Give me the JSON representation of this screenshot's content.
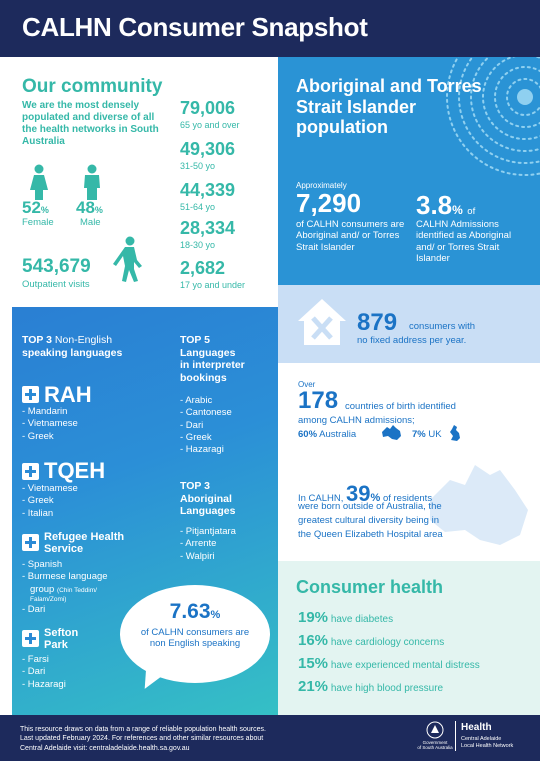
{
  "header": {
    "title": "CALHN Consumer Snapshot"
  },
  "community": {
    "title": "Our community",
    "description": "We are the most densely populated and diverse of all the health networks in South Australia",
    "female_pct": "52",
    "female_label": "Female",
    "male_pct": "48",
    "male_label": "Male",
    "pct_sign": "%",
    "outpatient_num": "543,679",
    "outpatient_label": "Outpatient visits",
    "ages": [
      {
        "num": "79,006",
        "label": "65 yo and over"
      },
      {
        "num": "49,306",
        "label": "31-50 yo"
      },
      {
        "num": "44,339",
        "label": "51-64 yo"
      },
      {
        "num": "28,334",
        "label": "18-30 yo"
      },
      {
        "num": "2,682",
        "label": "17 yo and under"
      }
    ]
  },
  "aboriginal": {
    "title": "Aboriginal and Torres Strait Islander population",
    "approx": "Approximately",
    "count": "7,290",
    "count_text": "of CALHN consumers are Aboriginal and/ or Torres Strait Islander",
    "pct": "3.8",
    "pct_sign": "%",
    "pct_of": "of",
    "pct_text": "CALHN Admissions identified as Aboriginal and/ or Torres Strait Islander"
  },
  "no_fixed_address": {
    "num": "879",
    "text1": "consumers with",
    "text2": "no fixed address per year."
  },
  "countries": {
    "over": "Over",
    "num": "178",
    "text1": "countries of birth identified",
    "text2": "among CALHN admissions;",
    "aus_pct": "60%",
    "aus_label": "Australia",
    "uk_pct": "7%",
    "uk_label": "UK",
    "born_pre": "In CALHN,",
    "born_num": "39",
    "born_pct": "%",
    "born_text1": "of residents",
    "born_text2": "were born outside of Australia, the",
    "born_text3": "greatest cultural diversity being in",
    "born_text4": "the Queen Elizabeth Hospital area"
  },
  "languages": {
    "top3_heading": "TOP 3",
    "top3_heading_rest": "Non-English",
    "top3_heading_line2": "speaking languages",
    "rah": {
      "name": "RAH",
      "items": [
        "- Mandarin",
        "- Vietnamese",
        "- Greek"
      ]
    },
    "tqeh": {
      "name": "TQEH",
      "items": [
        "- Vietnamese",
        "- Greek",
        "- Italian"
      ]
    },
    "refugee": {
      "name1": "Refugee Health",
      "name2": "Service",
      "items": [
        "- Spanish",
        "- Burmese language",
        "group",
        "(Chin Teddim/",
        "Falam/Zomi)",
        "- Dari"
      ]
    },
    "sefton": {
      "name1": "Sefton",
      "name2": "Park",
      "items": [
        "- Farsi",
        "- Dari",
        "- Hazaragi"
      ]
    },
    "top5_heading": [
      "TOP 5",
      "Languages",
      "in interpreter",
      "bookings"
    ],
    "top5_items": [
      "- Arabic",
      "- Cantonese",
      "- Dari",
      "- Greek",
      "- Hazaragi"
    ],
    "abor_heading": [
      "TOP 3",
      "Aboriginal",
      "Languages"
    ],
    "abor_items": [
      "- Pitjantjatara",
      "- Arrente",
      "- Walpiri"
    ],
    "bubble_num": "7.63",
    "bubble_pct": "%",
    "bubble_text": "of CALHN consumers are non English speaking"
  },
  "consumer_health": {
    "title": "Consumer health",
    "rows": [
      {
        "pct": "19%",
        "text": "have diabetes"
      },
      {
        "pct": "16%",
        "text": "have cardiology concerns"
      },
      {
        "pct": "15%",
        "text": "have experienced mental distress"
      },
      {
        "pct": "21%",
        "text": "have high blood pressure"
      }
    ]
  },
  "footer": {
    "line1": "This resource draws on data from a range of reliable population health sources.",
    "line2": "Last updated February 2024. For references and other similar resources about",
    "line3": "Central Adelaide visit: centraladelaide.health.sa.gov.au",
    "gov1": "Government",
    "gov2": "of South Australia",
    "health": "Health",
    "health_sub1": "Central Adelaide",
    "health_sub2": "Local Health Network"
  },
  "colors": {
    "navy": "#1d2a5c",
    "teal": "#35b8a8",
    "blue": "#2a93d5",
    "dark_blue": "#1b73c5"
  }
}
